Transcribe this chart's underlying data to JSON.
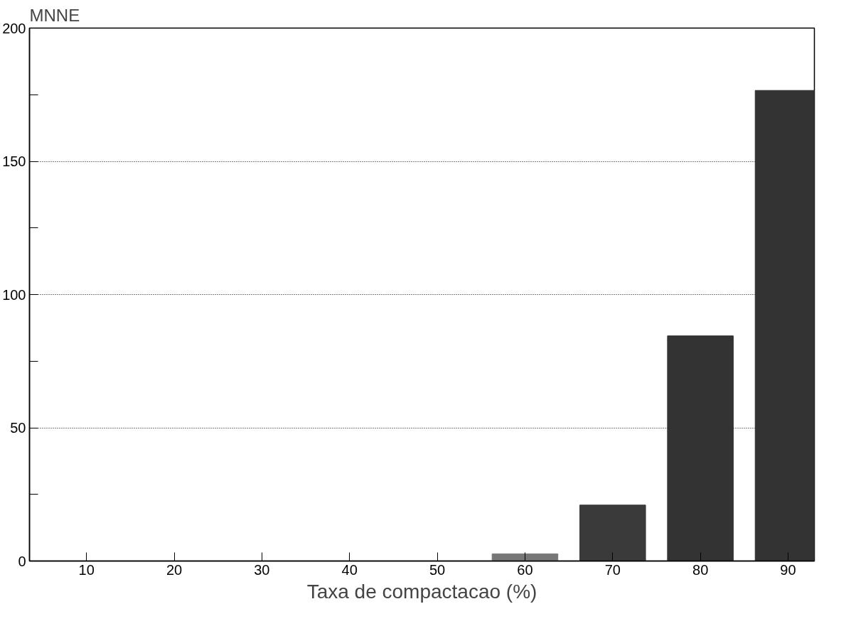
{
  "chart_data": {
    "type": "bar",
    "ylabel": "MNNE",
    "xlabel": "Taxa de compactacao (%)",
    "categories": [
      "10",
      "20",
      "30",
      "40",
      "50",
      "60",
      "70",
      "80",
      "90"
    ],
    "values": [
      0,
      0,
      0,
      0,
      0,
      2.7,
      21,
      84.5,
      176.6
    ],
    "colors": [
      "#333333",
      "#333333",
      "#333333",
      "#333333",
      "#333333",
      "#777777",
      "#3a3a3a",
      "#333333",
      "#333333"
    ],
    "ylim": [
      0,
      200
    ],
    "yticks": [
      0,
      {
        "value": 25,
        "label": null
      },
      50,
      {
        "value": 75,
        "label": null
      },
      100,
      {
        "value": 125,
        "label": null
      },
      150,
      {
        "value": 175,
        "label": null
      },
      200
    ],
    "grid": "y"
  }
}
